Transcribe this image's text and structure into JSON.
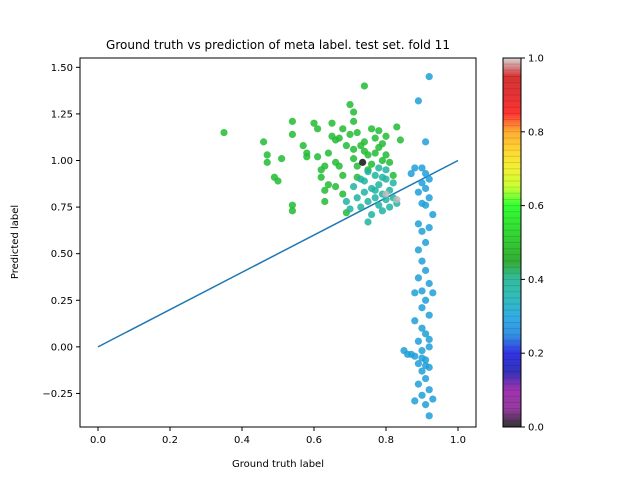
{
  "chart_data": {
    "type": "scatter",
    "title": "Ground truth vs prediction of meta label. test set. fold 11",
    "xlabel": "Ground truth label",
    "ylabel": "Predicted label",
    "xlim": [
      -0.05,
      1.05
    ],
    "ylim": [
      -0.43,
      1.55
    ],
    "xticks": [
      "0.0",
      "0.2",
      "0.4",
      "0.6",
      "0.8",
      "1.0"
    ],
    "yticks": [
      "-0.25",
      "0.00",
      "0.25",
      "0.50",
      "0.75",
      "1.00",
      "1.25",
      "1.50"
    ],
    "grid": false,
    "colormap": "nipy_spectral",
    "colorbar": {
      "range": [
        0.0,
        1.0
      ],
      "ticks": [
        "0.0",
        "0.2",
        "0.4",
        "0.6",
        "0.8",
        "1.0"
      ]
    },
    "reference_line": {
      "x": [
        0.0,
        1.0
      ],
      "y": [
        0.0,
        1.0
      ],
      "color": "#1f77b4"
    },
    "series": [
      {
        "color": "#22bb33",
        "points": [
          [
            0.35,
            1.15
          ],
          [
            0.46,
            1.1
          ],
          [
            0.47,
            1.03
          ],
          [
            0.47,
            0.99
          ],
          [
            0.49,
            0.91
          ],
          [
            0.5,
            0.89
          ],
          [
            0.51,
            1.01
          ],
          [
            0.54,
            1.21
          ],
          [
            0.54,
            1.14
          ],
          [
            0.54,
            0.76
          ],
          [
            0.54,
            0.73
          ],
          [
            0.57,
            1.08
          ],
          [
            0.58,
            1.02
          ],
          [
            0.58,
            1.04
          ],
          [
            0.6,
            1.2
          ],
          [
            0.61,
            1.17
          ],
          [
            0.61,
            1.02
          ],
          [
            0.62,
            0.95
          ],
          [
            0.62,
            0.91
          ],
          [
            0.63,
            0.84
          ],
          [
            0.63,
            0.78
          ],
          [
            0.63,
            0.97
          ],
          [
            0.64,
            1.04
          ],
          [
            0.64,
            0.87
          ],
          [
            0.65,
            1.2
          ],
          [
            0.65,
            1.13
          ],
          [
            0.66,
            1.11
          ],
          [
            0.66,
            0.99
          ],
          [
            0.66,
            0.86
          ],
          [
            0.67,
            1.12
          ],
          [
            0.67,
            0.97
          ],
          [
            0.68,
            1.17
          ],
          [
            0.68,
            0.92
          ],
          [
            0.68,
            0.82
          ],
          [
            0.69,
            1.08
          ],
          [
            0.69,
            0.72
          ],
          [
            0.7,
            1.14
          ],
          [
            0.7,
            1.3
          ],
          [
            0.71,
            1.26
          ],
          [
            0.71,
            1.21
          ],
          [
            0.71,
            1.06
          ],
          [
            0.71,
            1.01
          ],
          [
            0.72,
            1.15
          ],
          [
            0.72,
            0.97
          ],
          [
            0.72,
            0.91
          ],
          [
            0.73,
            1.08
          ],
          [
            0.74,
            1.4
          ],
          [
            0.74,
            1.1
          ],
          [
            0.75,
            0.95
          ],
          [
            0.75,
            1.03
          ],
          [
            0.76,
            1.17
          ],
          [
            0.77,
            1.12
          ],
          [
            0.77,
            1.04
          ],
          [
            0.78,
            1.16
          ],
          [
            0.78,
            1.07
          ],
          [
            0.79,
            1.0
          ],
          [
            0.8,
            1.13
          ],
          [
            0.8,
            1.03
          ],
          [
            0.81,
            0.99
          ],
          [
            0.82,
            0.92
          ],
          [
            0.83,
            1.18
          ],
          [
            0.84,
            1.11
          ],
          [
            0.76,
            0.98
          ],
          [
            0.74,
            1.05
          ],
          [
            0.79,
            1.09
          ]
        ]
      },
      {
        "color": "#1fb3a0",
        "points": [
          [
            0.69,
            0.78
          ],
          [
            0.7,
            0.74
          ],
          [
            0.71,
            0.86
          ],
          [
            0.72,
            0.8
          ],
          [
            0.73,
            0.75
          ],
          [
            0.74,
            0.83
          ],
          [
            0.74,
            0.89
          ],
          [
            0.75,
            0.78
          ],
          [
            0.75,
            0.94
          ],
          [
            0.76,
            0.71
          ],
          [
            0.76,
            0.85
          ],
          [
            0.77,
            0.8
          ],
          [
            0.77,
            0.92
          ],
          [
            0.78,
            0.76
          ],
          [
            0.78,
            0.87
          ],
          [
            0.79,
            0.82
          ],
          [
            0.79,
            0.73
          ],
          [
            0.8,
            0.9
          ],
          [
            0.8,
            0.79
          ],
          [
            0.81,
            0.84
          ],
          [
            0.81,
            0.75
          ],
          [
            0.82,
            0.8
          ],
          [
            0.82,
            0.88
          ],
          [
            0.83,
            0.77
          ],
          [
            0.75,
            0.67
          ],
          [
            0.73,
            0.9
          ],
          [
            0.78,
            0.96
          ],
          [
            0.8,
            0.95
          ],
          [
            0.77,
            0.84
          ],
          [
            0.79,
            0.91
          ]
        ]
      },
      {
        "color": "#1e9fd8",
        "points": [
          [
            0.92,
            1.45
          ],
          [
            0.89,
            1.32
          ],
          [
            0.91,
            1.1
          ],
          [
            0.88,
            0.96
          ],
          [
            0.9,
            0.96
          ],
          [
            0.87,
            0.93
          ],
          [
            0.91,
            0.93
          ],
          [
            0.92,
            0.9
          ],
          [
            0.9,
            0.88
          ],
          [
            0.91,
            0.85
          ],
          [
            0.89,
            0.83
          ],
          [
            0.92,
            0.8
          ],
          [
            0.9,
            0.77
          ],
          [
            0.91,
            0.76
          ],
          [
            0.93,
            0.71
          ],
          [
            0.89,
            0.66
          ],
          [
            0.92,
            0.64
          ],
          [
            0.9,
            0.62
          ],
          [
            0.91,
            0.56
          ],
          [
            0.89,
            0.52
          ],
          [
            0.9,
            0.46
          ],
          [
            0.91,
            0.41
          ],
          [
            0.89,
            0.37
          ],
          [
            0.92,
            0.34
          ],
          [
            0.9,
            0.3
          ],
          [
            0.93,
            0.29
          ],
          [
            0.88,
            0.29
          ],
          [
            0.91,
            0.25
          ],
          [
            0.9,
            0.21
          ],
          [
            0.92,
            0.17
          ],
          [
            0.88,
            0.14
          ],
          [
            0.9,
            0.1
          ],
          [
            0.91,
            0.07
          ],
          [
            0.89,
            0.03
          ],
          [
            0.92,
            0.0
          ],
          [
            0.9,
            -0.02
          ],
          [
            0.86,
            -0.04
          ],
          [
            0.88,
            -0.05
          ],
          [
            0.91,
            -0.07
          ],
          [
            0.89,
            -0.09
          ],
          [
            0.92,
            -0.11
          ],
          [
            0.9,
            -0.13
          ],
          [
            0.91,
            -0.17
          ],
          [
            0.89,
            -0.2
          ],
          [
            0.92,
            -0.23
          ],
          [
            0.9,
            -0.26
          ],
          [
            0.88,
            -0.29
          ],
          [
            0.91,
            -0.31
          ],
          [
            0.93,
            -0.28
          ],
          [
            0.92,
            -0.37
          ],
          [
            0.85,
            -0.02
          ],
          [
            0.87,
            -0.04
          ],
          [
            0.9,
            -0.06
          ],
          [
            0.91,
            -0.1
          ],
          [
            0.92,
            0.04
          ]
        ]
      },
      {
        "color": "#111111",
        "points": [
          [
            0.735,
            0.99
          ]
        ]
      },
      {
        "color": "#bbbbbb",
        "points": [
          [
            0.83,
            0.79
          ],
          [
            0.8,
            0.82
          ]
        ]
      }
    ]
  }
}
